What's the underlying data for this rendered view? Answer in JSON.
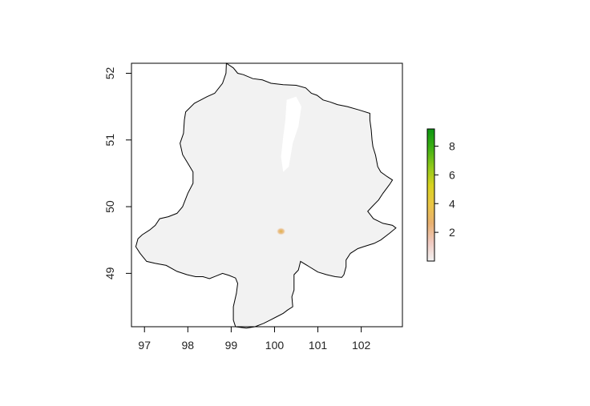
{
  "chart_data": {
    "type": "heatmap",
    "title": "",
    "xlabel": "",
    "ylabel": "",
    "xlim": [
      96.7,
      102.95
    ],
    "ylim": [
      48.2,
      52.15
    ],
    "x_ticks": [
      "97",
      "98",
      "99",
      "100",
      "101",
      "102"
    ],
    "y_ticks": [
      "49",
      "50",
      "51",
      "52"
    ],
    "x_tick_values": [
      97,
      98,
      99,
      100,
      101,
      102
    ],
    "y_tick_values": [
      49,
      50,
      51,
      52
    ],
    "legend": {
      "range": [
        0,
        9.2
      ],
      "ticks": [
        "2",
        "4",
        "6",
        "8"
      ],
      "tick_values": [
        2,
        4,
        6,
        8
      ],
      "colors": [
        "#f2f2f2",
        "#f0c9c0",
        "#e8b070",
        "#eac645",
        "#d8d220",
        "#8ec81a",
        "#3fb014",
        "#0d9612"
      ]
    },
    "region_fill": "#f2f2f2",
    "water_fill": "#ffffff",
    "hotspot": {
      "x": 100.15,
      "y": 49.63,
      "value": 4,
      "color": "#e0b040"
    },
    "grid": false,
    "boundary": [
      [
        98.89,
        52.15
      ],
      [
        99.05,
        52.08
      ],
      [
        99.15,
        52.0
      ],
      [
        99.28,
        51.98
      ],
      [
        99.5,
        51.92
      ],
      [
        99.72,
        51.9
      ],
      [
        99.92,
        51.85
      ],
      [
        100.2,
        51.83
      ],
      [
        100.5,
        51.82
      ],
      [
        100.72,
        51.78
      ],
      [
        100.85,
        51.7
      ],
      [
        100.98,
        51.67
      ],
      [
        101.12,
        51.6
      ],
      [
        101.28,
        51.57
      ],
      [
        101.45,
        51.53
      ],
      [
        101.68,
        51.5
      ],
      [
        101.95,
        51.45
      ],
      [
        102.2,
        51.4
      ],
      [
        102.2,
        51.3
      ],
      [
        102.23,
        51.15
      ],
      [
        102.25,
        51.0
      ],
      [
        102.27,
        50.9
      ],
      [
        102.33,
        50.77
      ],
      [
        102.38,
        50.6
      ],
      [
        102.45,
        50.52
      ],
      [
        102.6,
        50.45
      ],
      [
        102.72,
        50.4
      ],
      [
        102.65,
        50.33
      ],
      [
        102.5,
        50.2
      ],
      [
        102.4,
        50.1
      ],
      [
        102.25,
        50.0
      ],
      [
        102.15,
        49.93
      ],
      [
        102.28,
        49.82
      ],
      [
        102.5,
        49.75
      ],
      [
        102.72,
        49.72
      ],
      [
        102.8,
        49.68
      ],
      [
        102.65,
        49.6
      ],
      [
        102.45,
        49.5
      ],
      [
        102.3,
        49.45
      ],
      [
        102.05,
        49.4
      ],
      [
        101.92,
        49.37
      ],
      [
        101.75,
        49.3
      ],
      [
        101.65,
        49.2
      ],
      [
        101.65,
        49.1
      ],
      [
        101.6,
        48.98
      ],
      [
        101.55,
        48.94
      ],
      [
        101.4,
        48.95
      ],
      [
        101.2,
        48.98
      ],
      [
        101.0,
        49.02
      ],
      [
        100.8,
        49.1
      ],
      [
        100.6,
        49.18
      ],
      [
        100.55,
        49.05
      ],
      [
        100.45,
        48.98
      ],
      [
        100.45,
        48.75
      ],
      [
        100.4,
        48.65
      ],
      [
        100.42,
        48.5
      ],
      [
        100.3,
        48.45
      ],
      [
        100.2,
        48.4
      ],
      [
        100.05,
        48.35
      ],
      [
        99.9,
        48.3
      ],
      [
        99.75,
        48.25
      ],
      [
        99.55,
        48.2
      ],
      [
        99.35,
        48.18
      ],
      [
        99.1,
        48.2
      ],
      [
        99.05,
        48.3
      ],
      [
        99.05,
        48.5
      ],
      [
        99.12,
        48.7
      ],
      [
        99.15,
        48.85
      ],
      [
        99.1,
        48.93
      ],
      [
        98.95,
        48.97
      ],
      [
        98.8,
        49.0
      ],
      [
        98.65,
        48.96
      ],
      [
        98.5,
        48.92
      ],
      [
        98.35,
        48.95
      ],
      [
        98.18,
        48.95
      ],
      [
        97.98,
        48.98
      ],
      [
        97.75,
        49.03
      ],
      [
        97.5,
        49.12
      ],
      [
        97.25,
        49.15
      ],
      [
        97.05,
        49.18
      ],
      [
        96.9,
        49.3
      ],
      [
        96.8,
        49.4
      ],
      [
        96.85,
        49.52
      ],
      [
        96.95,
        49.58
      ],
      [
        97.12,
        49.65
      ],
      [
        97.25,
        49.72
      ],
      [
        97.35,
        49.82
      ],
      [
        97.55,
        49.85
      ],
      [
        97.75,
        49.9
      ],
      [
        97.88,
        50.0
      ],
      [
        98.0,
        50.2
      ],
      [
        98.12,
        50.35
      ],
      [
        98.12,
        50.52
      ],
      [
        98.0,
        50.65
      ],
      [
        97.88,
        50.78
      ],
      [
        97.82,
        50.95
      ],
      [
        97.9,
        51.1
      ],
      [
        97.92,
        51.3
      ],
      [
        97.95,
        51.42
      ],
      [
        98.15,
        51.55
      ],
      [
        98.3,
        51.6
      ],
      [
        98.45,
        51.65
      ],
      [
        98.62,
        51.7
      ],
      [
        98.8,
        51.85
      ],
      [
        98.88,
        52.0
      ],
      [
        98.89,
        52.15
      ]
    ],
    "lakes": [
      [
        [
          100.28,
          51.6
        ],
        [
          100.5,
          51.65
        ],
        [
          100.62,
          51.5
        ],
        [
          100.55,
          51.2
        ],
        [
          100.42,
          50.95
        ],
        [
          100.33,
          50.6
        ],
        [
          100.2,
          50.52
        ],
        [
          100.15,
          50.75
        ],
        [
          100.2,
          51.05
        ],
        [
          100.25,
          51.3
        ],
        [
          100.28,
          51.6
        ]
      ]
    ]
  }
}
